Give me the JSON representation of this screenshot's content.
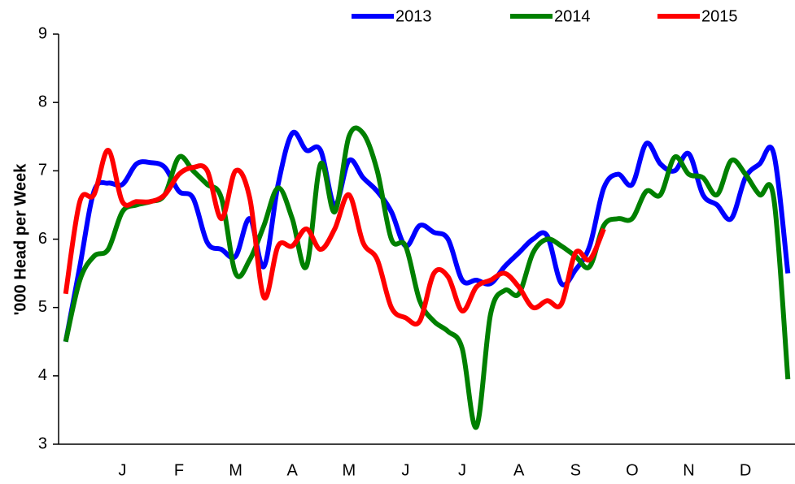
{
  "chart_data": {
    "type": "line",
    "y_label": "'000 Head per Week",
    "categories": [
      null,
      null,
      null,
      null,
      "J",
      null,
      null,
      null,
      "F",
      null,
      null,
      null,
      "M",
      null,
      null,
      null,
      "A",
      null,
      null,
      null,
      "M",
      null,
      null,
      null,
      "J",
      null,
      null,
      null,
      "J",
      null,
      null,
      null,
      "A",
      null,
      null,
      null,
      "S",
      null,
      null,
      null,
      "O",
      null,
      null,
      null,
      "N",
      null,
      null,
      null,
      "D",
      null,
      null,
      null
    ],
    "series": [
      {
        "name": "2013",
        "color": "#0000ff",
        "values": [
          4.5,
          5.6,
          6.7,
          6.82,
          6.8,
          7.1,
          7.12,
          7.05,
          6.7,
          6.6,
          5.95,
          5.85,
          5.75,
          6.3,
          5.6,
          6.8,
          7.55,
          7.3,
          7.3,
          6.5,
          7.15,
          6.9,
          6.7,
          6.4,
          5.9,
          6.2,
          6.1,
          6.0,
          5.4,
          5.4,
          5.35,
          5.6,
          5.8,
          6.0,
          6.05,
          5.35,
          5.55,
          5.9,
          6.75,
          6.95,
          6.8,
          7.4,
          7.1,
          7.0,
          7.25,
          6.65,
          6.5,
          6.3,
          6.9,
          7.1,
          7.25,
          5.5
        ]
      },
      {
        "name": "2014",
        "color": "#008000",
        "values": [
          4.5,
          5.4,
          5.75,
          5.85,
          6.4,
          6.5,
          6.55,
          6.65,
          7.2,
          7.0,
          6.8,
          6.6,
          5.5,
          5.7,
          6.2,
          6.75,
          6.3,
          5.6,
          7.1,
          6.4,
          7.5,
          7.55,
          7.0,
          6.0,
          5.9,
          5.1,
          4.8,
          4.65,
          4.4,
          3.25,
          4.9,
          5.25,
          5.2,
          5.8,
          6.0,
          5.9,
          5.75,
          5.6,
          6.2,
          6.3,
          6.3,
          6.7,
          6.65,
          7.2,
          6.95,
          6.9,
          6.65,
          7.15,
          6.95,
          6.65,
          6.6,
          3.95
        ]
      },
      {
        "name": "2015",
        "color": "#ff0000",
        "values": [
          5.2,
          6.55,
          6.65,
          7.3,
          6.55,
          6.55,
          6.55,
          6.65,
          6.95,
          7.05,
          7.0,
          6.3,
          7.0,
          6.6,
          5.15,
          5.9,
          5.9,
          6.15,
          5.85,
          6.15,
          6.65,
          5.95,
          5.7,
          5.0,
          4.85,
          4.8,
          5.5,
          5.45,
          4.95,
          5.3,
          5.4,
          5.5,
          5.3,
          5.0,
          5.1,
          5.05,
          5.8,
          5.7,
          6.15,
          null,
          null,
          null,
          null,
          null,
          null,
          null,
          null,
          null,
          null,
          null,
          null,
          null
        ]
      }
    ],
    "ylim": [
      3,
      9
    ],
    "yticks": [
      3,
      4,
      5,
      6,
      7,
      8,
      9
    ],
    "grid": false,
    "smooth": true,
    "legend": "top"
  }
}
